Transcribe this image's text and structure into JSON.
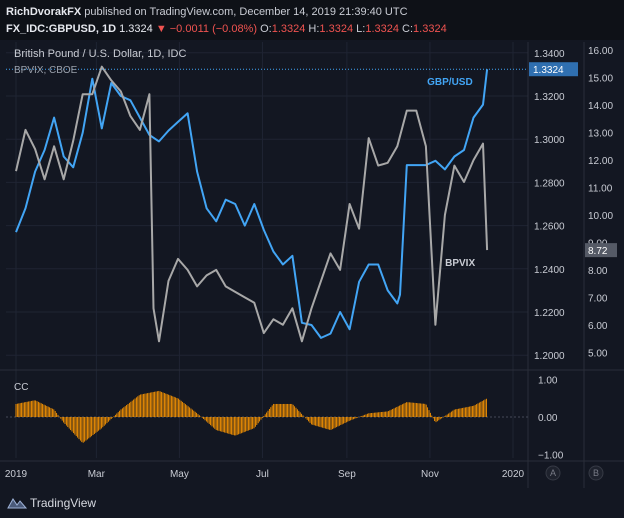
{
  "header": {
    "author": "RichDvorakFX",
    "published": "published on TradingView.com, December 14, 2019 21:39:40 UTC",
    "symbol": "FX_IDC:GBPUSD, 1D",
    "last": "1.3324",
    "change": "▼ −0.0011 (−0.08%)",
    "o_label": "O:",
    "o_val": "1.3324",
    "h_label": "H:",
    "h_val": "1.3324",
    "l_label": "L:",
    "l_val": "1.3324",
    "c_label": "C:",
    "c_val": "1.3324"
  },
  "footer": {
    "brand": "TradingView"
  },
  "chart_data": {
    "type": "line",
    "title": "British Pound / U.S. Dollar, 1D, IDC",
    "subtitle": "BPVIX, CBOE",
    "x_ticks": [
      "2019",
      "Mar",
      "May",
      "Jul",
      "Sep",
      "Nov",
      "2020"
    ],
    "left_axis_ticks": [
      "1.3400",
      "1.3200",
      "1.3000",
      "1.2800",
      "1.2600",
      "1.2400",
      "1.2200",
      "1.2000"
    ],
    "right_axis_ticks": [
      "16.00",
      "15.00",
      "14.00",
      "13.00",
      "12.00",
      "11.00",
      "10.00",
      "9.00",
      "8.00",
      "7.00",
      "6.00",
      "5.00"
    ],
    "price_tag": "1.3324",
    "vix_tag": "8.72",
    "price_range": [
      1.195,
      1.345
    ],
    "vix_range": [
      4.5,
      16.3
    ],
    "series": [
      {
        "name": "GBP/USD",
        "color": "#42a5f5",
        "x": [
          "2019-01-01",
          "2019-01-08",
          "2019-01-15",
          "2019-01-22",
          "2019-01-29",
          "2019-02-05",
          "2019-02-12",
          "2019-02-19",
          "2019-02-26",
          "2019-03-05",
          "2019-03-12",
          "2019-03-19",
          "2019-03-26",
          "2019-04-02",
          "2019-04-09",
          "2019-04-16",
          "2019-04-23",
          "2019-04-30",
          "2019-05-07",
          "2019-05-14",
          "2019-05-21",
          "2019-05-28",
          "2019-06-04",
          "2019-06-11",
          "2019-06-18",
          "2019-06-25",
          "2019-07-02",
          "2019-07-09",
          "2019-07-16",
          "2019-07-23",
          "2019-07-30",
          "2019-08-06",
          "2019-08-13",
          "2019-08-20",
          "2019-08-27",
          "2019-09-03",
          "2019-09-10",
          "2019-09-17",
          "2019-09-24",
          "2019-10-01",
          "2019-10-08",
          "2019-10-10",
          "2019-10-15",
          "2019-10-22",
          "2019-10-29",
          "2019-11-05",
          "2019-11-12",
          "2019-11-19",
          "2019-11-26",
          "2019-12-03",
          "2019-12-10",
          "2019-12-13"
        ],
        "values": [
          1.257,
          1.268,
          1.285,
          1.295,
          1.31,
          1.292,
          1.287,
          1.303,
          1.328,
          1.305,
          1.326,
          1.32,
          1.318,
          1.31,
          1.302,
          1.299,
          1.304,
          1.308,
          1.312,
          1.285,
          1.268,
          1.262,
          1.272,
          1.27,
          1.26,
          1.27,
          1.258,
          1.248,
          1.242,
          1.246,
          1.215,
          1.214,
          1.208,
          1.21,
          1.22,
          1.212,
          1.234,
          1.242,
          1.242,
          1.23,
          1.224,
          1.228,
          1.288,
          1.288,
          1.288,
          1.29,
          1.286,
          1.292,
          1.295,
          1.31,
          1.316,
          1.3324
        ]
      },
      {
        "name": "BPVIX",
        "color": "#a8a8a8",
        "x": [
          "2019-01-01",
          "2019-01-08",
          "2019-01-15",
          "2019-01-22",
          "2019-01-29",
          "2019-02-05",
          "2019-02-12",
          "2019-02-19",
          "2019-02-26",
          "2019-03-05",
          "2019-03-12",
          "2019-03-19",
          "2019-03-26",
          "2019-04-02",
          "2019-04-09",
          "2019-04-12",
          "2019-04-16",
          "2019-04-23",
          "2019-04-30",
          "2019-05-07",
          "2019-05-14",
          "2019-05-21",
          "2019-05-28",
          "2019-06-04",
          "2019-06-11",
          "2019-06-18",
          "2019-06-25",
          "2019-07-02",
          "2019-07-09",
          "2019-07-16",
          "2019-07-23",
          "2019-07-30",
          "2019-08-06",
          "2019-08-13",
          "2019-08-20",
          "2019-08-27",
          "2019-09-03",
          "2019-09-10",
          "2019-09-17",
          "2019-09-24",
          "2019-10-01",
          "2019-10-08",
          "2019-10-15",
          "2019-10-22",
          "2019-10-29",
          "2019-11-05",
          "2019-11-12",
          "2019-11-19",
          "2019-11-26",
          "2019-12-03",
          "2019-12-10",
          "2019-12-13"
        ],
        "values": [
          11.6,
          13.1,
          12.4,
          11.3,
          12.5,
          11.3,
          12.7,
          14.4,
          14.4,
          15.4,
          14.9,
          14.5,
          13.6,
          13.1,
          14.4,
          6.6,
          5.4,
          7.6,
          8.4,
          8.0,
          7.4,
          7.8,
          8.0,
          7.4,
          7.2,
          7.0,
          6.8,
          5.7,
          6.2,
          6.0,
          6.6,
          5.4,
          6.6,
          7.6,
          8.6,
          8.0,
          10.4,
          9.5,
          12.8,
          11.8,
          11.9,
          12.5,
          13.8,
          13.8,
          12.5,
          6.0,
          10.0,
          11.8,
          11.2,
          12.0,
          12.6,
          8.72
        ]
      }
    ],
    "cc_indicator": {
      "name": "CC",
      "axis_ticks": [
        "1.00",
        "0.00",
        "−1.00"
      ],
      "range": [
        -1.1,
        1.1
      ],
      "x": [
        "2019-01-01",
        "2019-01-15",
        "2019-01-29",
        "2019-02-05",
        "2019-02-19",
        "2019-03-05",
        "2019-03-19",
        "2019-04-02",
        "2019-04-16",
        "2019-04-30",
        "2019-05-14",
        "2019-05-28",
        "2019-06-11",
        "2019-06-25",
        "2019-07-09",
        "2019-07-23",
        "2019-08-06",
        "2019-08-20",
        "2019-09-03",
        "2019-09-17",
        "2019-10-01",
        "2019-10-15",
        "2019-10-29",
        "2019-11-05",
        "2019-11-19",
        "2019-12-03",
        "2019-12-13"
      ],
      "values": [
        0.35,
        0.45,
        0.2,
        -0.15,
        -0.7,
        -0.3,
        0.2,
        0.6,
        0.7,
        0.5,
        0.1,
        -0.35,
        -0.5,
        -0.3,
        0.35,
        0.35,
        -0.2,
        -0.35,
        -0.1,
        0.1,
        0.15,
        0.4,
        0.35,
        -0.15,
        0.2,
        0.3,
        0.5
      ]
    },
    "axis_buttons": [
      "A",
      "B"
    ]
  },
  "colors": {
    "background": "#131722",
    "price": "#42a5f5",
    "vix": "#a8a8a8",
    "cc": "#ff9800",
    "grid": "#1f2433",
    "text": "#c9ccd4"
  }
}
